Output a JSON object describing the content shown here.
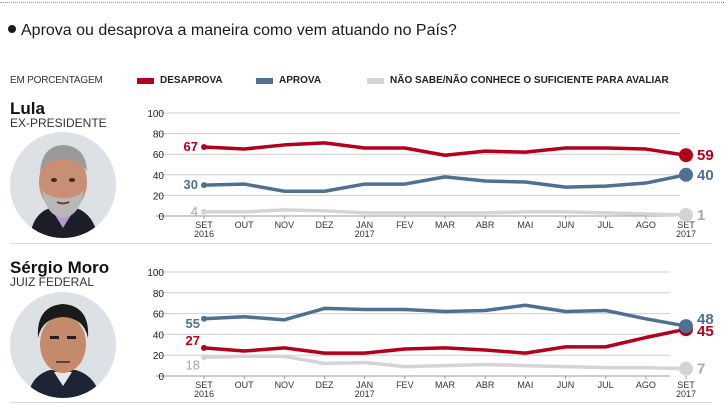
{
  "question": "Aprova ou desaprova a maneira como vem atuando no País?",
  "legend": {
    "unit": "EM PORCENTAGEM",
    "items": [
      {
        "label": "DESAPROVA",
        "color": "#b3001b"
      },
      {
        "label": "APROVA",
        "color": "#4f7191"
      },
      {
        "label": "NÃO SABE/NÃO CONHECE O SUFICIENTE PARA AVALIAR",
        "color": "#d4d4d4"
      }
    ]
  },
  "people": [
    {
      "name": "Lula",
      "role": "EX-PRESIDENTE",
      "photo": "lula-portrait"
    },
    {
      "name": "Sérgio Moro",
      "role": "JUIZ FEDERAL",
      "photo": "moro-portrait"
    }
  ],
  "chart_data": [
    {
      "type": "line",
      "title": "Lula",
      "subtitle": "EX-PRESIDENTE",
      "ylim": [
        0,
        100
      ],
      "yticks": [
        0,
        20,
        40,
        60,
        80,
        100
      ],
      "grid": true,
      "x": [
        [
          "SET",
          "2016"
        ],
        [
          "OUT",
          ""
        ],
        [
          "NOV",
          ""
        ],
        [
          "DEZ",
          ""
        ],
        [
          "JAN",
          "2017"
        ],
        [
          "FEV",
          ""
        ],
        [
          "MAR",
          ""
        ],
        [
          "ABR",
          ""
        ],
        [
          "MAI",
          ""
        ],
        [
          "JUN",
          ""
        ],
        [
          "JUL",
          ""
        ],
        [
          "AGO",
          ""
        ],
        [
          "SET",
          "2017"
        ]
      ],
      "series": [
        {
          "name": "DESAPROVA",
          "color": "#b3001b",
          "values": [
            67,
            65,
            69,
            71,
            66,
            66,
            59,
            63,
            62,
            66,
            66,
            65,
            59
          ],
          "start_label": "67",
          "end_label": "59"
        },
        {
          "name": "APROVA",
          "color": "#4f7191",
          "values": [
            30,
            31,
            24,
            24,
            31,
            31,
            38,
            34,
            33,
            28,
            29,
            32,
            40
          ],
          "start_label": "30",
          "end_label": "40"
        },
        {
          "name": "NÃO SABE/NÃO CONHECE O SUFICIENTE PARA AVALIAR",
          "color": "#d4d4d4",
          "values": [
            4,
            4,
            6,
            5,
            3,
            3,
            3,
            3,
            4,
            4,
            3,
            2,
            1
          ],
          "start_label": "4",
          "end_label": "1"
        }
      ]
    },
    {
      "type": "line",
      "title": "Sérgio Moro",
      "subtitle": "JUIZ FEDERAL",
      "ylim": [
        0,
        100
      ],
      "yticks": [
        0,
        20,
        40,
        60,
        80,
        100
      ],
      "grid": true,
      "x": [
        [
          "SET",
          "2016"
        ],
        [
          "OUT",
          ""
        ],
        [
          "NOV",
          ""
        ],
        [
          "DEZ",
          ""
        ],
        [
          "JAN",
          "2017"
        ],
        [
          "FEV",
          ""
        ],
        [
          "MAR",
          ""
        ],
        [
          "ABR",
          ""
        ],
        [
          "MAI",
          ""
        ],
        [
          "JUN",
          ""
        ],
        [
          "JUL",
          ""
        ],
        [
          "AGO",
          ""
        ],
        [
          "SET",
          "2017"
        ]
      ],
      "series": [
        {
          "name": "NÃO SABE/NÃO CONHECE O SUFICIENTE PARA AVALIAR",
          "color": "#d4d4d4",
          "values": [
            18,
            19,
            19,
            12,
            13,
            9,
            10,
            11,
            10,
            9,
            8,
            8,
            7
          ],
          "start_label": "18",
          "end_label": "7"
        },
        {
          "name": "DESAPROVA",
          "color": "#b3001b",
          "values": [
            27,
            24,
            27,
            22,
            22,
            26,
            27,
            25,
            22,
            28,
            28,
            37,
            45
          ],
          "start_label": "27",
          "end_label": "45"
        },
        {
          "name": "APROVA",
          "color": "#4f7191",
          "values": [
            55,
            57,
            54,
            65,
            64,
            64,
            62,
            63,
            68,
            62,
            63,
            55,
            48
          ],
          "start_label": "55",
          "end_label": "48"
        }
      ]
    }
  ]
}
